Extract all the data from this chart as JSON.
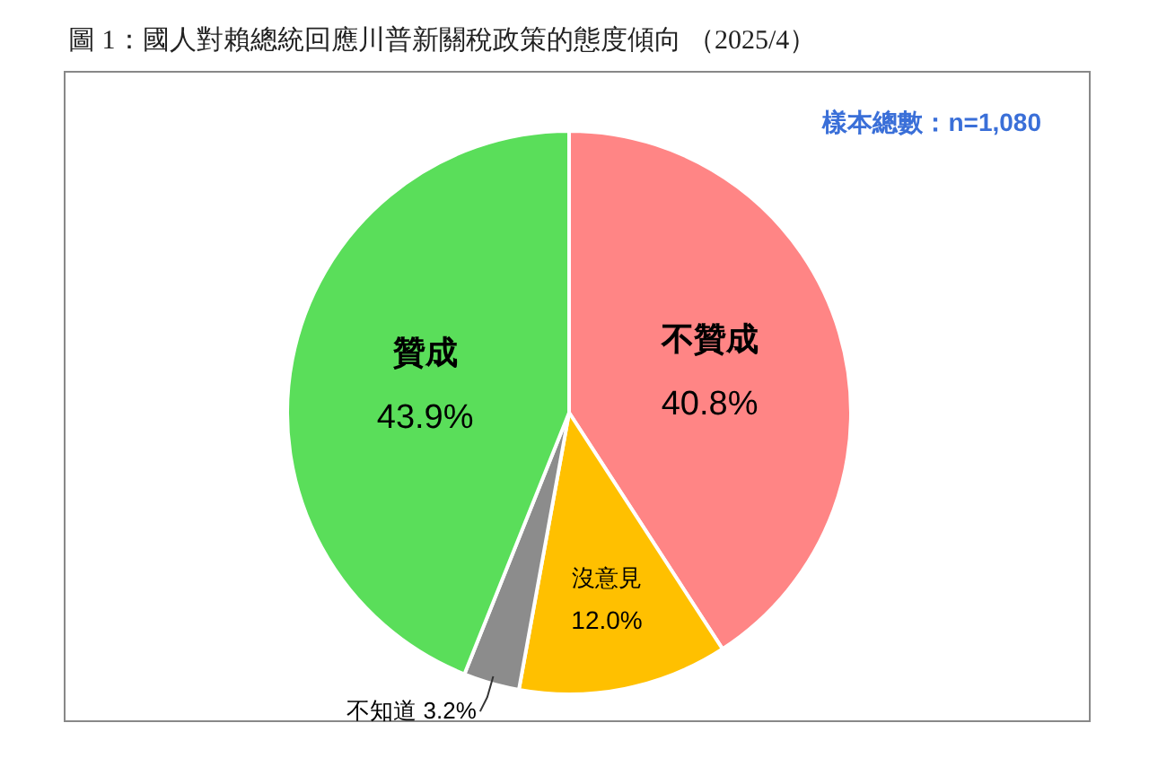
{
  "chart_data": {
    "type": "pie",
    "title": "圖 1：國人對賴總統回應川普新關稅政策的態度傾向 （2025/4）",
    "categories": [
      "不贊成",
      "沒意見",
      "不知道",
      "贊成"
    ],
    "values": [
      40.8,
      12.0,
      3.2,
      43.9
    ],
    "colors": [
      "#ff8585",
      "#ffc000",
      "#8c8c8c",
      "#5ade5a"
    ],
    "value_labels": [
      "40.8%",
      "12.0%",
      "3.2%",
      "43.9%"
    ],
    "annotations": [
      "樣本總數：n=1,080"
    ]
  }
}
